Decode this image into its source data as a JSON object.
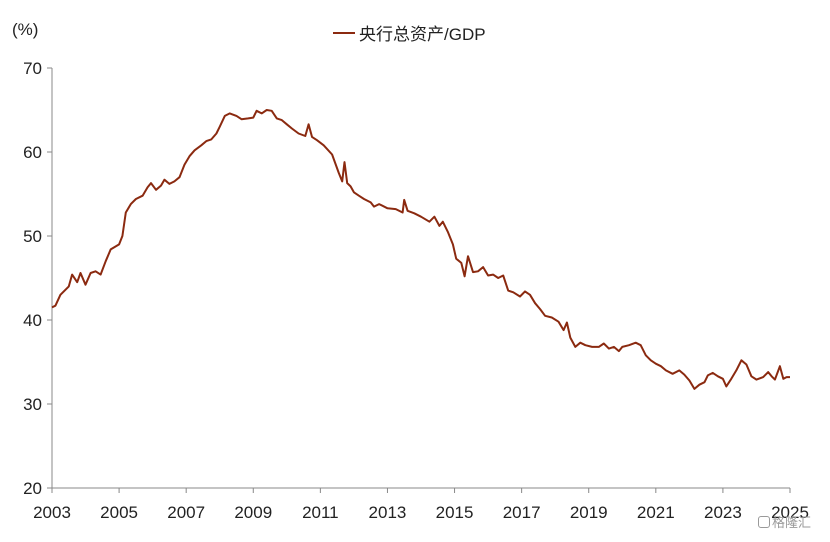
{
  "chart_data": {
    "type": "line",
    "ylabel": "(%)",
    "ylim": [
      20,
      70
    ],
    "yticks": [
      "20",
      "30",
      "40",
      "50",
      "60",
      "70"
    ],
    "xlim": [
      2003,
      2025
    ],
    "xticks": [
      "2003",
      "2005",
      "2007",
      "2009",
      "2011",
      "2013",
      "2015",
      "2017",
      "2019",
      "2021",
      "2023",
      "2025"
    ],
    "legend_position": "top-center",
    "grid": false,
    "series": [
      {
        "name": "央行总资产/GDP",
        "color": "#8b2a10",
        "points": [
          [
            2003.0,
            41.5
          ],
          [
            2003.1,
            41.7
          ],
          [
            2003.25,
            43.0
          ],
          [
            2003.5,
            44.0
          ],
          [
            2003.6,
            45.4
          ],
          [
            2003.75,
            44.5
          ],
          [
            2003.85,
            45.6
          ],
          [
            2004.0,
            44.2
          ],
          [
            2004.15,
            45.6
          ],
          [
            2004.3,
            45.8
          ],
          [
            2004.45,
            45.4
          ],
          [
            2004.6,
            47.0
          ],
          [
            2004.75,
            48.4
          ],
          [
            2005.0,
            49.0
          ],
          [
            2005.1,
            50.0
          ],
          [
            2005.2,
            52.8
          ],
          [
            2005.35,
            53.8
          ],
          [
            2005.5,
            54.4
          ],
          [
            2005.7,
            54.8
          ],
          [
            2005.85,
            55.8
          ],
          [
            2005.95,
            56.3
          ],
          [
            2006.1,
            55.5
          ],
          [
            2006.25,
            56.0
          ],
          [
            2006.35,
            56.7
          ],
          [
            2006.5,
            56.2
          ],
          [
            2006.65,
            56.5
          ],
          [
            2006.8,
            57.0
          ],
          [
            2006.95,
            58.5
          ],
          [
            2007.1,
            59.5
          ],
          [
            2007.25,
            60.2
          ],
          [
            2007.45,
            60.8
          ],
          [
            2007.6,
            61.3
          ],
          [
            2007.75,
            61.5
          ],
          [
            2007.9,
            62.2
          ],
          [
            2008.0,
            63.0
          ],
          [
            2008.15,
            64.3
          ],
          [
            2008.3,
            64.6
          ],
          [
            2008.5,
            64.3
          ],
          [
            2008.65,
            63.9
          ],
          [
            2008.85,
            64.0
          ],
          [
            2009.0,
            64.1
          ],
          [
            2009.1,
            64.9
          ],
          [
            2009.25,
            64.6
          ],
          [
            2009.4,
            65.0
          ],
          [
            2009.55,
            64.9
          ],
          [
            2009.7,
            64.0
          ],
          [
            2009.85,
            63.8
          ],
          [
            2010.0,
            63.3
          ],
          [
            2010.15,
            62.8
          ],
          [
            2010.35,
            62.2
          ],
          [
            2010.55,
            61.9
          ],
          [
            2010.65,
            63.3
          ],
          [
            2010.75,
            61.8
          ],
          [
            2010.9,
            61.4
          ],
          [
            2011.1,
            60.8
          ],
          [
            2011.35,
            59.7
          ],
          [
            2011.55,
            57.5
          ],
          [
            2011.65,
            56.5
          ],
          [
            2011.72,
            58.8
          ],
          [
            2011.8,
            56.3
          ],
          [
            2011.9,
            55.9
          ],
          [
            2012.0,
            55.2
          ],
          [
            2012.15,
            54.8
          ],
          [
            2012.3,
            54.4
          ],
          [
            2012.5,
            54.0
          ],
          [
            2012.6,
            53.5
          ],
          [
            2012.75,
            53.8
          ],
          [
            2013.0,
            53.3
          ],
          [
            2013.25,
            53.2
          ],
          [
            2013.45,
            52.8
          ],
          [
            2013.5,
            54.3
          ],
          [
            2013.6,
            53.0
          ],
          [
            2013.8,
            52.7
          ],
          [
            2014.0,
            52.3
          ],
          [
            2014.25,
            51.7
          ],
          [
            2014.4,
            52.3
          ],
          [
            2014.55,
            51.2
          ],
          [
            2014.65,
            51.7
          ],
          [
            2014.8,
            50.5
          ],
          [
            2014.95,
            49.0
          ],
          [
            2015.05,
            47.3
          ],
          [
            2015.2,
            46.8
          ],
          [
            2015.3,
            45.2
          ],
          [
            2015.4,
            47.6
          ],
          [
            2015.55,
            45.7
          ],
          [
            2015.7,
            45.8
          ],
          [
            2015.85,
            46.3
          ],
          [
            2016.0,
            45.3
          ],
          [
            2016.15,
            45.4
          ],
          [
            2016.3,
            45.0
          ],
          [
            2016.45,
            45.3
          ],
          [
            2016.6,
            43.5
          ],
          [
            2016.75,
            43.3
          ],
          [
            2016.95,
            42.8
          ],
          [
            2017.1,
            43.4
          ],
          [
            2017.25,
            43.0
          ],
          [
            2017.4,
            42.0
          ],
          [
            2017.55,
            41.3
          ],
          [
            2017.7,
            40.5
          ],
          [
            2017.9,
            40.3
          ],
          [
            2018.1,
            39.8
          ],
          [
            2018.25,
            38.8
          ],
          [
            2018.35,
            39.7
          ],
          [
            2018.45,
            37.9
          ],
          [
            2018.6,
            36.8
          ],
          [
            2018.75,
            37.3
          ],
          [
            2018.9,
            37.0
          ],
          [
            2019.1,
            36.8
          ],
          [
            2019.3,
            36.8
          ],
          [
            2019.45,
            37.2
          ],
          [
            2019.6,
            36.6
          ],
          [
            2019.75,
            36.8
          ],
          [
            2019.9,
            36.3
          ],
          [
            2020.0,
            36.8
          ],
          [
            2020.2,
            37.0
          ],
          [
            2020.4,
            37.3
          ],
          [
            2020.55,
            37.0
          ],
          [
            2020.7,
            35.8
          ],
          [
            2020.85,
            35.2
          ],
          [
            2021.0,
            34.8
          ],
          [
            2021.15,
            34.5
          ],
          [
            2021.3,
            34.0
          ],
          [
            2021.5,
            33.6
          ],
          [
            2021.7,
            34.0
          ],
          [
            2021.85,
            33.5
          ],
          [
            2022.0,
            32.8
          ],
          [
            2022.15,
            31.8
          ],
          [
            2022.3,
            32.3
          ],
          [
            2022.45,
            32.6
          ],
          [
            2022.55,
            33.4
          ],
          [
            2022.7,
            33.7
          ],
          [
            2022.85,
            33.3
          ],
          [
            2023.0,
            33.0
          ],
          [
            2023.1,
            32.1
          ],
          [
            2023.25,
            33.0
          ],
          [
            2023.4,
            34.0
          ],
          [
            2023.55,
            35.2
          ],
          [
            2023.7,
            34.7
          ],
          [
            2023.85,
            33.3
          ],
          [
            2024.0,
            32.9
          ],
          [
            2024.2,
            33.2
          ],
          [
            2024.35,
            33.8
          ],
          [
            2024.45,
            33.3
          ],
          [
            2024.55,
            32.9
          ],
          [
            2024.7,
            34.5
          ],
          [
            2024.8,
            33.0
          ],
          [
            2024.9,
            33.2
          ],
          [
            2025.0,
            33.2
          ]
        ]
      }
    ]
  },
  "watermark": "格隆汇"
}
